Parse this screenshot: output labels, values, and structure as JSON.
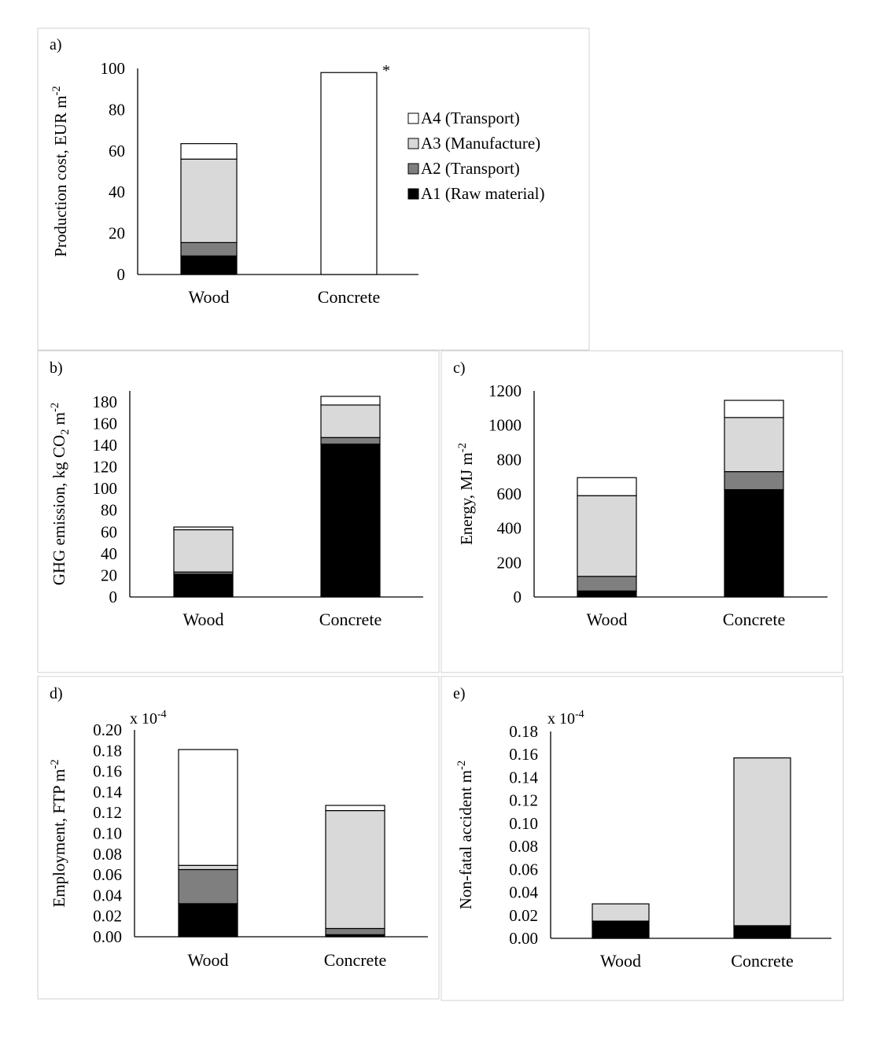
{
  "legend": {
    "entries": [
      {
        "label": "A4 (Transport)",
        "color": "#ffffff"
      },
      {
        "label": "A3 (Manufacture)",
        "color": "#d9d9d9"
      },
      {
        "label": "A2 (Transport)",
        "color": "#7f7f7f"
      },
      {
        "label": "A1 (Raw material)",
        "color": "#000000"
      }
    ]
  },
  "chart_data": [
    {
      "panel_label": "a)",
      "type": "bar",
      "stacked": true,
      "categories": [
        "Wood",
        "Concrete"
      ],
      "ylabel": "Production cost, EUR m-2",
      "ylim": [
        0,
        100
      ],
      "yticks": [
        "0",
        "20",
        "40",
        "60",
        "80",
        "100"
      ],
      "annotation": "*",
      "series": [
        {
          "name": "A1 (Raw material)",
          "values": [
            9,
            0
          ]
        },
        {
          "name": "A2 (Transport)",
          "values": [
            6.5,
            0
          ]
        },
        {
          "name": "A3 (Manufacture)",
          "values": [
            40.5,
            0
          ]
        },
        {
          "name": "A4 (Transport)",
          "values": [
            7.5,
            98
          ]
        }
      ]
    },
    {
      "panel_label": "b)",
      "type": "bar",
      "stacked": true,
      "categories": [
        "Wood",
        "Concrete"
      ],
      "ylabel": "GHG emission, kg CO2 m-2",
      "ylim": [
        0,
        190
      ],
      "yticks": [
        "0",
        "20",
        "40",
        "60",
        "80",
        "100",
        "120",
        "140",
        "160",
        "180"
      ],
      "series": [
        {
          "name": "A1 (Raw material)",
          "values": [
            21,
            141
          ]
        },
        {
          "name": "A2 (Transport)",
          "values": [
            2,
            6
          ]
        },
        {
          "name": "A3 (Manufacture)",
          "values": [
            39,
            30
          ]
        },
        {
          "name": "A4 (Transport)",
          "values": [
            2.5,
            8
          ]
        }
      ]
    },
    {
      "panel_label": "c)",
      "type": "bar",
      "stacked": true,
      "categories": [
        "Wood",
        "Concrete"
      ],
      "ylabel": "Energy, MJ m-2",
      "ylim": [
        0,
        1200
      ],
      "yticks": [
        "0",
        "200",
        "400",
        "600",
        "800",
        "1000",
        "1200"
      ],
      "series": [
        {
          "name": "A1 (Raw material)",
          "values": [
            35,
            625
          ]
        },
        {
          "name": "A2 (Transport)",
          "values": [
            85,
            105
          ]
        },
        {
          "name": "A3 (Manufacture)",
          "values": [
            470,
            315
          ]
        },
        {
          "name": "A4 (Transport)",
          "values": [
            105,
            100
          ]
        }
      ]
    },
    {
      "panel_label": "d)",
      "type": "bar",
      "stacked": true,
      "categories": [
        "Wood",
        "Concrete"
      ],
      "ylabel": "Employment,  FTP m-2",
      "multiplier": "x 10-4",
      "ylim": [
        0,
        0.2
      ],
      "yticks": [
        "0.00",
        "0.02",
        "0.04",
        "0.06",
        "0.08",
        "0.10",
        "0.12",
        "0.14",
        "0.16",
        "0.18",
        "0.20"
      ],
      "series": [
        {
          "name": "A1 (Raw material)",
          "values": [
            0.032,
            0.002
          ]
        },
        {
          "name": "A2 (Transport)",
          "values": [
            0.033,
            0.006
          ]
        },
        {
          "name": "A3 (Manufacture)",
          "values": [
            0.004,
            0.114
          ]
        },
        {
          "name": "A4 (Transport)",
          "values": [
            0.112,
            0.005
          ]
        }
      ]
    },
    {
      "panel_label": "e)",
      "type": "bar",
      "stacked": true,
      "categories": [
        "Wood",
        "Concrete"
      ],
      "ylabel": "Non-fatal accident m-2",
      "multiplier": "x 10-4",
      "ylim": [
        0,
        0.18
      ],
      "yticks": [
        "0.00",
        "0.02",
        "0.04",
        "0.06",
        "0.08",
        "0.10",
        "0.12",
        "0.14",
        "0.16",
        "0.18"
      ],
      "series": [
        {
          "name": "A1 (Raw material)",
          "values": [
            0.015,
            0.011
          ]
        },
        {
          "name": "A2 (Transport)",
          "values": [
            0,
            0
          ]
        },
        {
          "name": "A3 (Manufacture)",
          "values": [
            0.015,
            0.146
          ]
        },
        {
          "name": "A4 (Transport)",
          "values": [
            0,
            0
          ]
        }
      ]
    }
  ]
}
